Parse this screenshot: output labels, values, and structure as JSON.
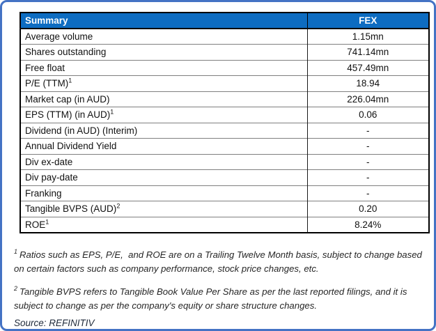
{
  "frame": {
    "border_color": "#4472C4"
  },
  "table": {
    "header": {
      "left": "Summary",
      "right": "FEX",
      "bg_color": "#0D6CC1",
      "text_color": "#FFFFFF"
    },
    "rows": [
      {
        "label": "Average volume",
        "sup": "",
        "value": "1.15mn"
      },
      {
        "label": "Shares outstanding",
        "sup": "",
        "value": "741.14mn"
      },
      {
        "label": "Free float",
        "sup": "",
        "value": "457.49mn"
      },
      {
        "label": "P/E (TTM)",
        "sup": "1",
        "value": "18.94"
      },
      {
        "label": "Market cap (in AUD)",
        "sup": "",
        "value": "226.04mn"
      },
      {
        "label": "EPS (TTM) (in AUD)",
        "sup": "1",
        "value": "0.06"
      },
      {
        "label": "Dividend (in AUD) (Interim)",
        "sup": "",
        "value": "-"
      },
      {
        "label": "Annual Dividend Yield",
        "sup": "",
        "value": "-"
      },
      {
        "label": "Div ex-date",
        "sup": "",
        "value": "-"
      },
      {
        "label": "Div pay-date",
        "sup": "",
        "value": "-"
      },
      {
        "label": "Franking",
        "sup": "",
        "value": "-"
      },
      {
        "label": "Tangible BVPS (AUD)",
        "sup": "2",
        "value": "0.20"
      },
      {
        "label": "ROE",
        "sup": "1",
        "value": "8.24%"
      }
    ]
  },
  "footnotes": [
    {
      "marker": "1",
      "text": "Ratios such as EPS, P/E,  and ROE are on a Trailing Twelve Month basis, subject to change based on certain factors such as company performance, stock price changes, etc."
    },
    {
      "marker": "2",
      "text": "Tangible BVPS refers to Tangible Book Value Per Share as per the last reported filings, and it is subject to change as per the company's equity or share structure changes."
    }
  ],
  "source": "Source: REFINITIV"
}
